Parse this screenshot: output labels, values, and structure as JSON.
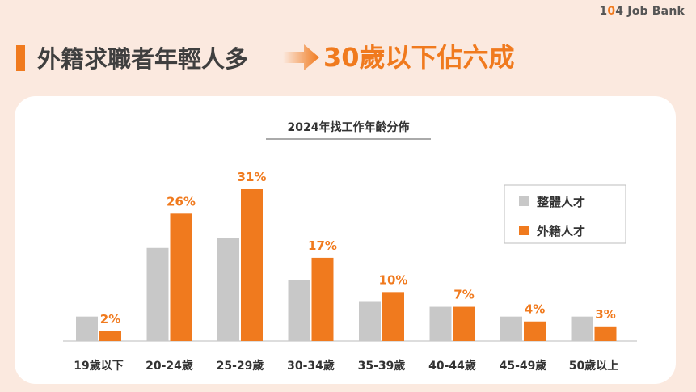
{
  "header": {
    "logo_prefix": "1",
    "logo_accent": "0",
    "logo_suffix": "4 Job Bank",
    "title_left": "外籍求職者年輕人多",
    "title_right": "30歲以下佔六成"
  },
  "colors": {
    "accent": "#f07a1e",
    "gray": "#c8c8c8",
    "background": "#fbe9df",
    "card": "#ffffff"
  },
  "chart_data": {
    "type": "bar",
    "title": "2024年找工作年齡分佈",
    "categories": [
      "19歲以下",
      "20-24歲",
      "25-29歲",
      "30-34歲",
      "35-39歲",
      "40-44歲",
      "45-49歲",
      "50歲以上"
    ],
    "series": [
      {
        "name": "整體人才",
        "values": [
          5,
          19,
          21,
          12.5,
          8,
          7,
          5,
          5
        ],
        "color": "#c8c8c8"
      },
      {
        "name": "外籍人才",
        "values": [
          2,
          26,
          31,
          17,
          10,
          7,
          4,
          3
        ],
        "color": "#f07a1e",
        "labels": [
          "2%",
          "26%",
          "31%",
          "17%",
          "10%",
          "7%",
          "4%",
          "3%"
        ]
      }
    ],
    "ylim": [
      0,
      31
    ],
    "legend_position": "top-right",
    "grid": false
  }
}
